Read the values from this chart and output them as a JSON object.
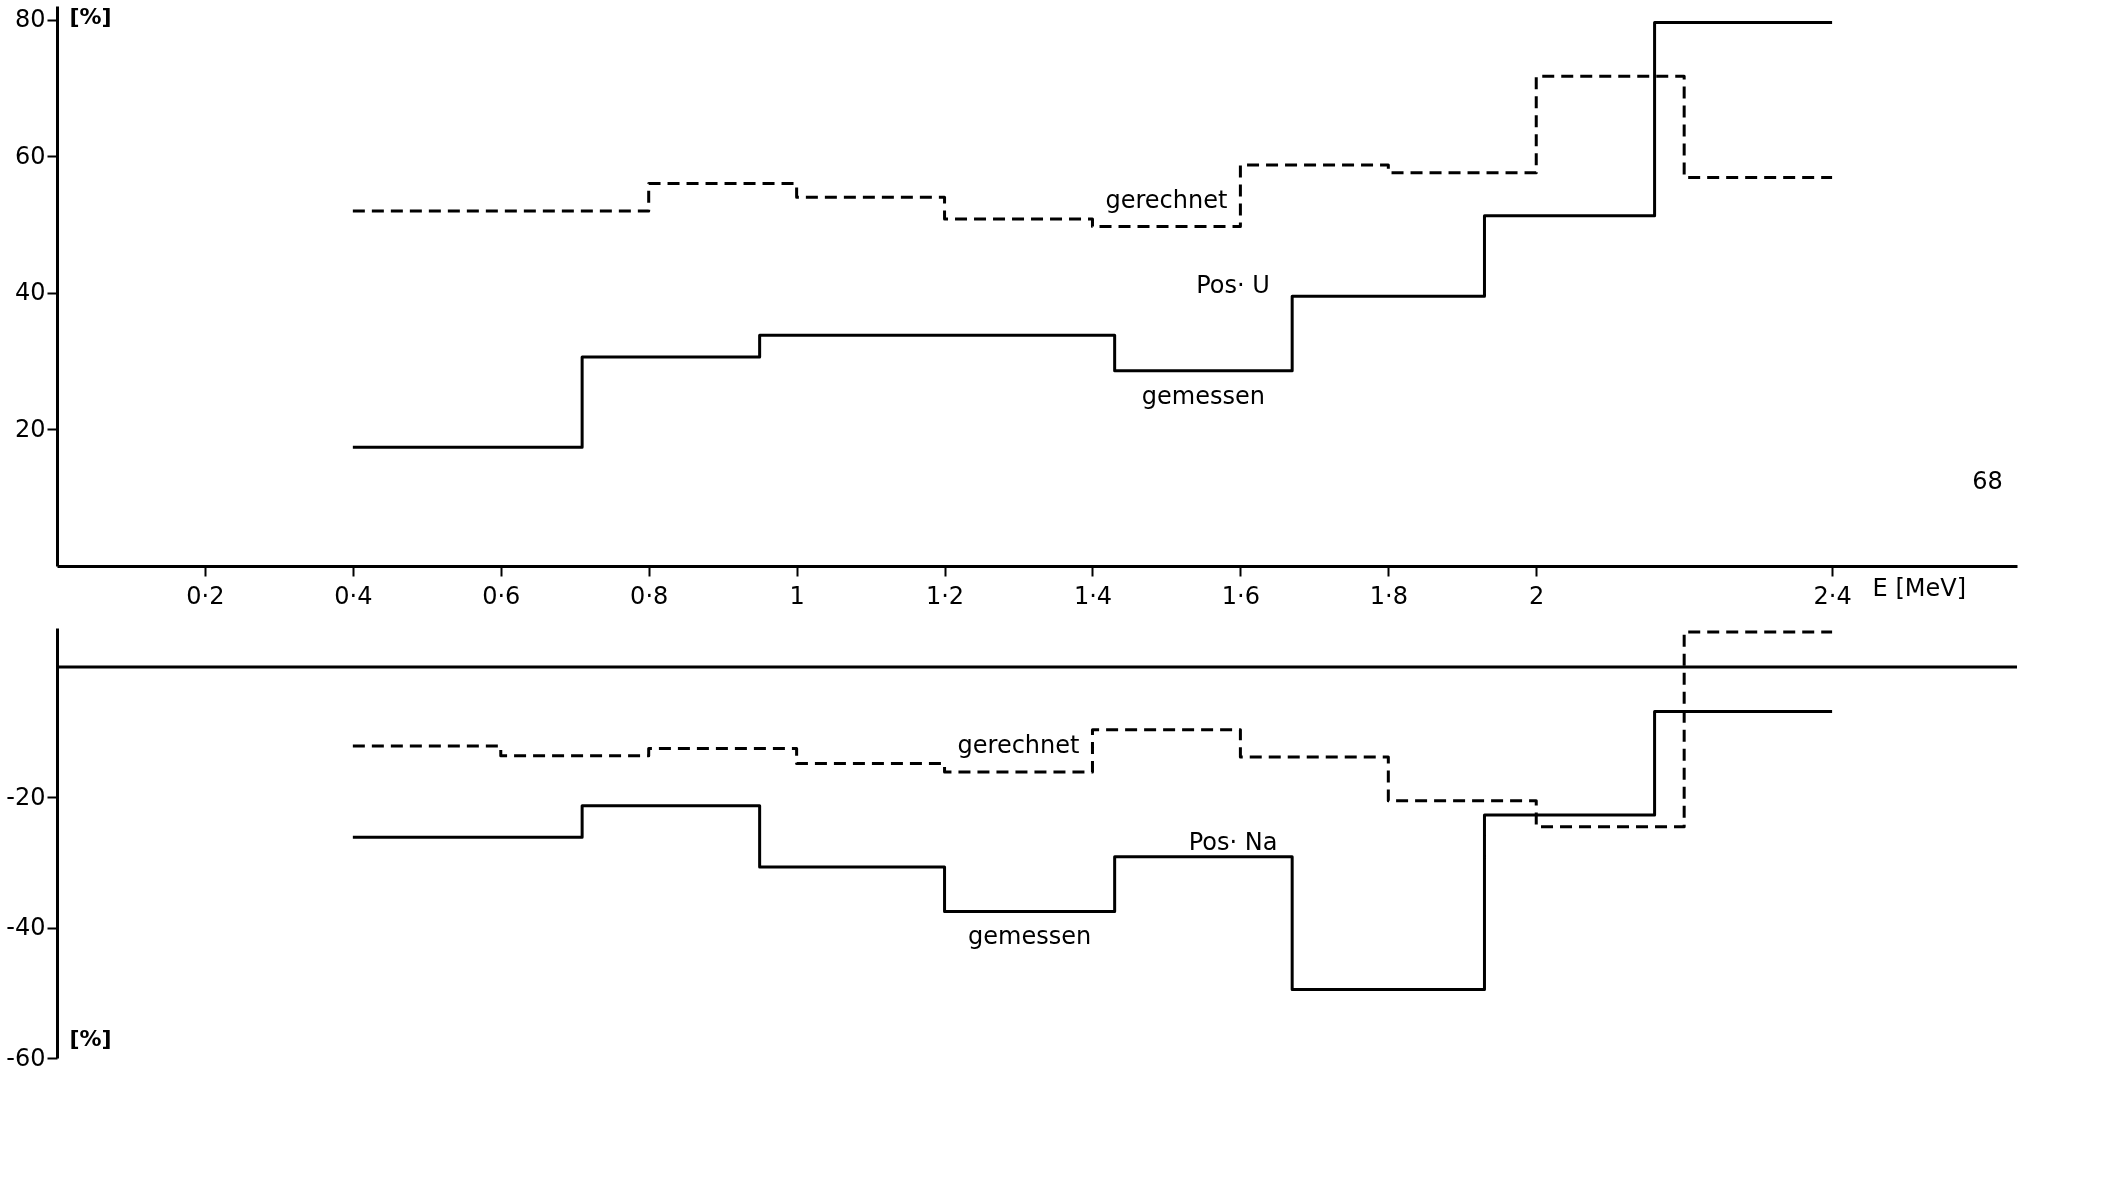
{
  "chart_data": [
    {
      "type": "step",
      "xlabel": "E [MeV]",
      "ylabel": "[%]",
      "xlim": [
        0,
        2.65
      ],
      "ylim": [
        0,
        82
      ],
      "xticks": [
        {
          "value": 0.2,
          "label": "0·2"
        },
        {
          "value": 0.4,
          "label": "0·4"
        },
        {
          "value": 0.6,
          "label": "0·6"
        },
        {
          "value": 0.8,
          "label": "0·8"
        },
        1,
        {
          "value": 1.2,
          "label": "1·2"
        },
        {
          "value": 1.4,
          "label": "1·4"
        },
        {
          "value": 1.6,
          "label": "1·6"
        },
        {
          "value": 1.8,
          "label": "1·8"
        },
        2,
        {
          "value": 2.4,
          "label": "2·4"
        }
      ],
      "yticks": [
        20,
        40,
        60,
        80
      ],
      "series": [
        {
          "name": "gerechnet",
          "color": "#000000",
          "line_style": "dashed",
          "x": [
            0.4,
            0.8,
            1.0,
            1.2,
            1.4,
            1.6,
            1.8,
            2.0,
            2.2,
            2.4
          ],
          "values": [
            52.0,
            56.0,
            54.0,
            50.8,
            49.7,
            58.7,
            57.6,
            71.7,
            56.9,
            56.9
          ]
        },
        {
          "name": "gemessen",
          "color": "#000000",
          "line_style": "solid",
          "x": [
            0.4,
            0.71,
            0.95,
            1.43,
            1.67,
            1.93,
            2.16,
            2.4
          ],
          "values": [
            17.4,
            30.6,
            33.8,
            28.6,
            39.5,
            51.3,
            79.6,
            79.6
          ]
        }
      ],
      "annotations": [
        "Pos· U",
        "68"
      ]
    },
    {
      "type": "step",
      "ylabel": "[%]",
      "xlim": [
        0,
        2.65
      ],
      "ylim": [
        -60,
        6
      ],
      "tick_labels": "y",
      "xticks": [
        0.2,
        0.4,
        0.6,
        0.8,
        1,
        1.2,
        1.4,
        1.6,
        1.8,
        2,
        2.4
      ],
      "yticks": [
        -20,
        -40,
        -60
      ],
      "ref_lines": [
        {
          "axis": "y",
          "value": 0,
          "color": "#000000"
        }
      ],
      "series": [
        {
          "name": "gerechnet",
          "color": "#000000",
          "line_style": "dashed",
          "x": [
            0.4,
            0.6,
            0.8,
            1.0,
            1.2,
            1.4,
            1.6,
            1.8,
            2.0,
            2.2,
            2.4
          ],
          "values": [
            -12.1,
            -13.6,
            -12.5,
            -14.8,
            -16.1,
            -9.6,
            -13.8,
            -20.5,
            -24.5,
            5.4,
            5.4
          ]
        },
        {
          "name": "gemessen",
          "color": "#000000",
          "line_style": "solid",
          "x": [
            0.4,
            0.71,
            0.95,
            1.2,
            1.43,
            1.67,
            1.93,
            2.16,
            2.4
          ],
          "values": [
            -26.1,
            -21.3,
            -30.7,
            -37.5,
            -29.1,
            -49.5,
            -22.7,
            -6.8,
            -6.8
          ]
        }
      ],
      "annotations": [
        "Pos· Na"
      ]
    }
  ]
}
